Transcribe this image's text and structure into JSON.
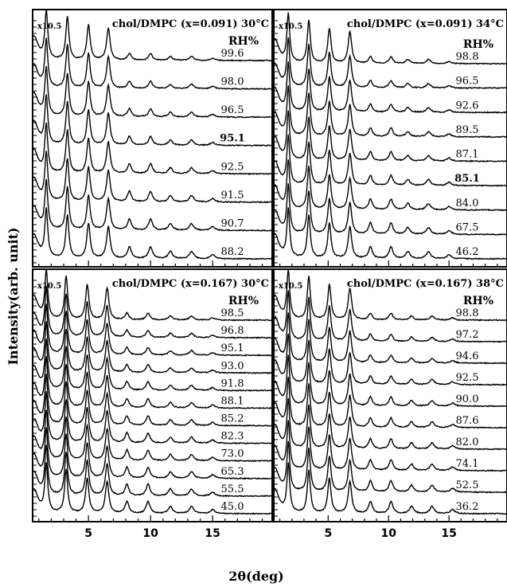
{
  "figure": {
    "xlabel": "2θ(deg)",
    "ylabel": "Intensity(arb. unit)"
  },
  "chart_data": [
    {
      "type": "line",
      "panel": "top-left",
      "title": "chol/DMPC (x=0.091)",
      "temperature": "30°C",
      "scale_label": "x10.5",
      "rh_header": "RH%",
      "rh_values": [
        "99.6",
        "98.0",
        "96.5",
        "95.1",
        "92.5",
        "91.5",
        "90.7",
        "88.2"
      ],
      "bold_rh": [
        "95.1"
      ],
      "xlim": [
        0.5,
        19.8
      ],
      "xticks": [
        5,
        10,
        15
      ],
      "ylabel": "",
      "peaks": [
        1.6,
        3.3,
        5.0,
        6.6,
        8.3,
        10.0,
        11.6,
        13.3,
        15.0
      ]
    },
    {
      "type": "line",
      "panel": "top-right",
      "title": "chol/DMPC (x=0.091)",
      "temperature": "34°C",
      "scale_label": "x10.5",
      "rh_header": "RH%",
      "rh_values": [
        "98.8",
        "96.5",
        "92.6",
        "89.5",
        "87.1",
        "85.1",
        "84.0",
        "67.5",
        "46.2"
      ],
      "bold_rh": [
        "85.1"
      ],
      "xlim": [
        0.5,
        19.8
      ],
      "xticks": [
        5,
        10,
        15
      ],
      "ylabel": "",
      "peaks": [
        1.7,
        3.4,
        5.1,
        6.8,
        8.5,
        10.2,
        11.6,
        13.3,
        15.0
      ]
    },
    {
      "type": "line",
      "panel": "bottom-left",
      "title": "chol/DMPC (x=0.167)",
      "temperature": "30°C",
      "scale_label": "x10.5",
      "rh_header": "RH%",
      "rh_values": [
        "98.5",
        "96.8",
        "95.1",
        "93.0",
        "91.8",
        "88.1",
        "85.2",
        "82.3",
        "73.0",
        "65.3",
        "55.5",
        "45.0"
      ],
      "bold_rh": [],
      "xlim": [
        0.5,
        19.8
      ],
      "xticks": [
        5,
        10,
        15
      ],
      "ylabel": "",
      "peaks": [
        1.6,
        3.2,
        4.9,
        6.5,
        8.1,
        9.8,
        11.6,
        13.3,
        15.0
      ]
    },
    {
      "type": "line",
      "panel": "bottom-right",
      "title": "chol/DMPC (x=0.167)",
      "temperature": "38°C",
      "scale_label": "x10.5",
      "rh_header": "RH%",
      "rh_values": [
        "98.8",
        "97.2",
        "94.6",
        "92.5",
        "90.0",
        "87.6",
        "82.0",
        "74.1",
        "52.5",
        "36.2"
      ],
      "bold_rh": [],
      "xlim": [
        0.5,
        19.8
      ],
      "xticks": [
        5,
        10,
        15
      ],
      "ylabel": "",
      "peaks": [
        1.7,
        3.4,
        5.1,
        6.8,
        8.5,
        10.2,
        11.9,
        13.6,
        15.3
      ]
    }
  ]
}
